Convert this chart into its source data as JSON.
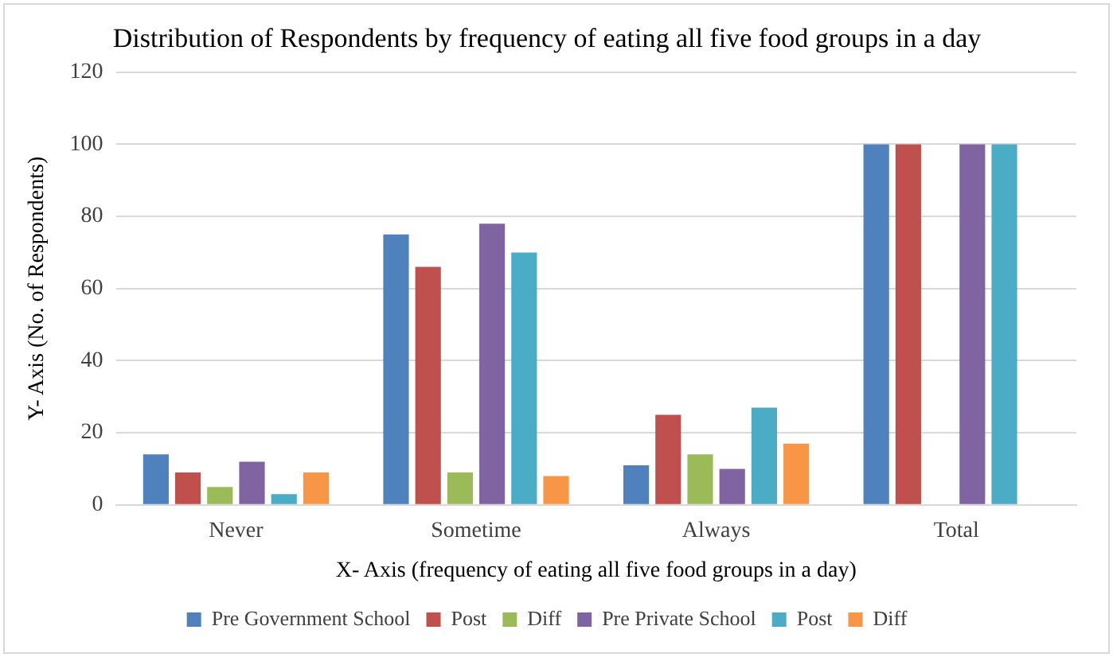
{
  "chart_data": {
    "type": "bar",
    "title": "Distribution of Respondents by frequency of eating all five food groups in a day",
    "xlabel": "X- Axis (frequency of eating all five food groups in a day)",
    "ylabel": "Y- Axis (No. of Respondents)",
    "categories": [
      "Never",
      "Sometime",
      "Always",
      "Total"
    ],
    "series": [
      {
        "name": "Pre Government School",
        "color": "#4f81bd",
        "values": [
          14,
          75,
          11,
          100
        ]
      },
      {
        "name": "Post",
        "color": "#c0504d",
        "values": [
          9,
          66,
          25,
          100
        ]
      },
      {
        "name": "Diff",
        "color": "#9bbb59",
        "values": [
          5,
          9,
          14,
          0
        ]
      },
      {
        "name": "Pre Private School",
        "color": "#8064a2",
        "values": [
          12,
          78,
          10,
          100
        ]
      },
      {
        "name": "Post",
        "color": "#4bacc6",
        "values": [
          3,
          70,
          27,
          100
        ]
      },
      {
        "name": "Diff",
        "color": "#f79646",
        "values": [
          9,
          8,
          17,
          0
        ]
      }
    ],
    "ylim": [
      0,
      120
    ],
    "yticks": [
      0,
      20,
      40,
      60,
      80,
      100,
      120
    ],
    "grid": "y",
    "legend": "bottom"
  }
}
